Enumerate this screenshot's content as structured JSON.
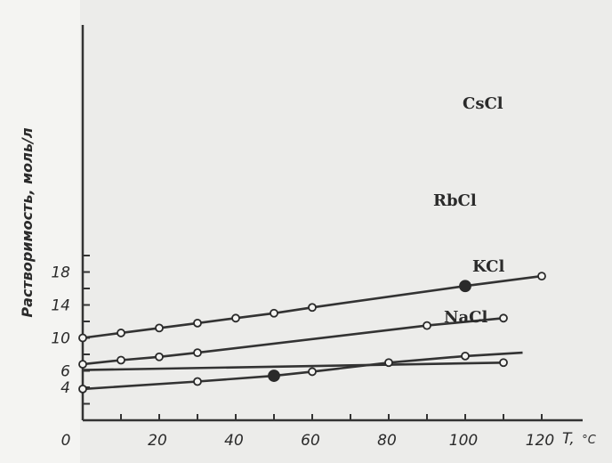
{
  "chart_data": {
    "type": "line",
    "title": "",
    "ylabel": "Растворимость, моль/л",
    "xlabel_symbol": "T,",
    "xlabel_unit": "°C",
    "xlim": [
      0,
      125
    ],
    "ylim": [
      0,
      21
    ],
    "xticks": [
      0,
      20,
      40,
      60,
      80,
      100,
      120
    ],
    "xtick_labels": [
      "0",
      "20",
      "40",
      "60",
      "80",
      "100",
      "120"
    ],
    "yticks_labeled": [
      4,
      6,
      10,
      14,
      18
    ],
    "ytick_labels": [
      "4",
      "6",
      "10",
      "14",
      "18"
    ],
    "yticks_minor": [
      2,
      4,
      6,
      8,
      10,
      12,
      14,
      16,
      18,
      20
    ],
    "grid": false,
    "series": [
      {
        "name": "CsCl",
        "points": [
          [
            0,
            10.0
          ],
          [
            10,
            10.6
          ],
          [
            20,
            11.2
          ],
          [
            30,
            11.8
          ],
          [
            40,
            12.4
          ],
          [
            50,
            13.0
          ],
          [
            60,
            13.7
          ],
          [
            100,
            16.3
          ],
          [
            120,
            17.5
          ]
        ],
        "filled_points": [
          [
            100,
            16.3
          ]
        ]
      },
      {
        "name": "RbCl",
        "points": [
          [
            0,
            6.8
          ],
          [
            10,
            7.3
          ],
          [
            20,
            7.7
          ],
          [
            30,
            8.2
          ],
          [
            90,
            11.5
          ],
          [
            110,
            12.4
          ]
        ],
        "filled_points": []
      },
      {
        "name": "KCl",
        "points": [
          [
            0,
            3.8
          ],
          [
            30,
            4.7
          ],
          [
            50,
            5.4
          ],
          [
            60,
            5.9
          ],
          [
            80,
            7.0
          ],
          [
            100,
            7.8
          ],
          [
            115,
            8.2
          ]
        ],
        "filled_points": [
          [
            50,
            5.4
          ]
        ]
      },
      {
        "name": "NaCl",
        "points": [
          [
            0,
            6.1
          ],
          [
            110,
            7.0
          ]
        ],
        "filled_points": []
      }
    ]
  }
}
